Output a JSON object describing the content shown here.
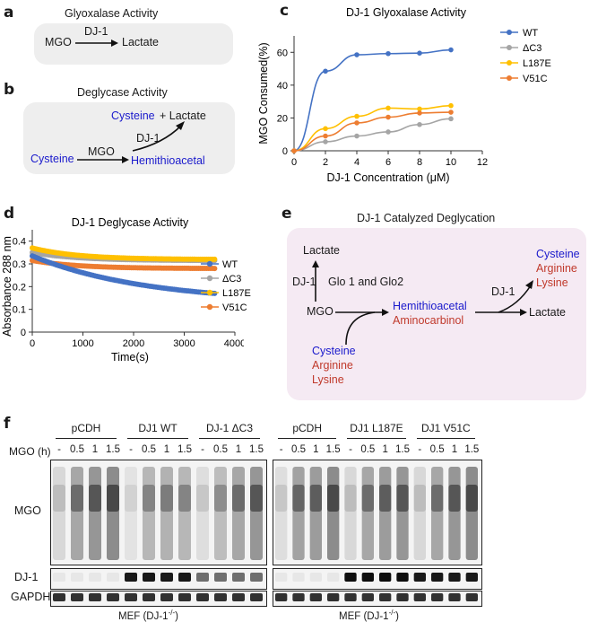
{
  "panels": {
    "a": {
      "label": "a",
      "title": "Glyoxalase Activity",
      "substrate": "MGO",
      "enzyme": "DJ-1",
      "product": "Lactate"
    },
    "b": {
      "label": "b",
      "title": "Deglycase Activity",
      "substrate": "Cysteine",
      "reagent": "MGO",
      "intermediate": "Hemithioacetal",
      "enzyme": "DJ-1",
      "product_cys": "Cysteine",
      "product_plus": "+ Lactate"
    },
    "e": {
      "label": "e",
      "title": "DJ-1 Catalyzed Deglycation",
      "lactate": "Lactate",
      "dj1_left": "DJ-1",
      "glo": "Glo 1 and Glo2",
      "mgo": "MGO",
      "hemithioacetal": "Hemithioacetal",
      "aminocarbinol": "Aminocarbinol",
      "dj1_right": "DJ-1",
      "lactate_right": "Lactate",
      "inputs": [
        "Cysteine",
        "Arginine",
        "Lysine"
      ],
      "outputs": [
        "Cysteine",
        "Arginine",
        "Lysine"
      ]
    },
    "f": {
      "label": "f",
      "mgo_h_label": "MGO (h)",
      "groups_left": [
        "pCDH",
        "DJ1 WT",
        "DJ-1 ΔC3"
      ],
      "groups_right": [
        "pCDH",
        "DJ1 L187E",
        "DJ1 V51C"
      ],
      "timepoints": [
        "-",
        "0.5",
        "1",
        "1.5"
      ],
      "rows": [
        "MGO",
        "DJ-1",
        "GAPDH"
      ],
      "cell_line": "MEF (DJ-1",
      "cell_sup": "-/-",
      "cell_close": ")"
    }
  },
  "chart_data": [
    {
      "panel": "c",
      "type": "line",
      "title": "DJ-1 Glyoxalase Activity",
      "xlabel": "DJ-1 Concentration (μM)",
      "ylabel": "MGO Consumed(%)",
      "xlim": [
        0,
        12
      ],
      "ylim": [
        0,
        70
      ],
      "xticks": [
        "0",
        "2",
        "4",
        "6",
        "8",
        "10",
        "12"
      ],
      "yticks": [
        "0",
        "20",
        "40",
        "60"
      ],
      "legend_position": "top-right",
      "x": [
        0,
        2,
        4,
        6,
        8,
        10
      ],
      "series": [
        {
          "name": "WT",
          "color": "#4472c4",
          "values": [
            0,
            48.5,
            58.5,
            59.2,
            59.5,
            61.5
          ]
        },
        {
          "name": "ΔC3",
          "color": "#a5a5a5",
          "values": [
            0,
            5.5,
            9,
            11.5,
            16,
            19.5
          ]
        },
        {
          "name": "L187E",
          "color": "#ffc000",
          "values": [
            0,
            13.5,
            21,
            26,
            25.5,
            27.5
          ]
        },
        {
          "name": "V51C",
          "color": "#ed7d31",
          "values": [
            0,
            9,
            17,
            20.5,
            23,
            23.5
          ]
        }
      ]
    },
    {
      "panel": "d",
      "type": "scatter",
      "title": "DJ-1 Deglycase Activity",
      "xlabel": "Time(s)",
      "ylabel": "Absorbance 288 nm",
      "xlim": [
        0,
        4000
      ],
      "ylim": [
        0,
        0.45
      ],
      "xticks": [
        "0",
        "1000",
        "2000",
        "3000",
        "4000"
      ],
      "yticks": [
        "0",
        "0.1",
        "0.2",
        "0.3",
        "0.4"
      ],
      "legend_position": "right",
      "x_range": [
        0,
        3600
      ],
      "series": [
        {
          "name": "WT",
          "color": "#4472c4",
          "start": 0.335,
          "end": 0.17,
          "shape": "decay"
        },
        {
          "name": "ΔC3",
          "color": "#a5a5a5",
          "start": 0.35,
          "end": 0.315,
          "shape": "flat"
        },
        {
          "name": "L187E",
          "color": "#ffc000",
          "start": 0.37,
          "end": 0.32,
          "shape": "flat"
        },
        {
          "name": "V51C",
          "color": "#ed7d31",
          "start": 0.315,
          "end": 0.28,
          "shape": "flat"
        }
      ]
    }
  ]
}
